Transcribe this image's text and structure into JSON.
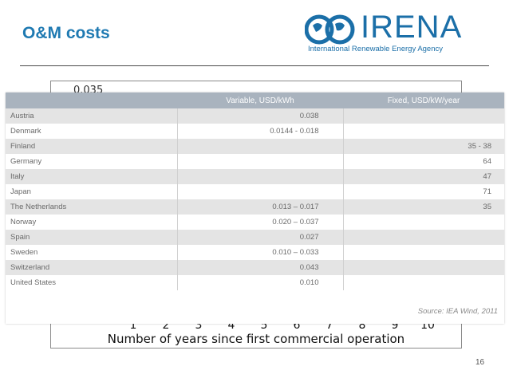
{
  "slide": {
    "title": "O&M costs",
    "page_number": "16"
  },
  "logo": {
    "wordmark": "IRENA",
    "tagline": "International Renewable Energy Agency",
    "color": "#1b6fa8"
  },
  "chart": {
    "visible_y_tick": "0.035",
    "x_ticks": [
      "1",
      "2",
      "3",
      "4",
      "5",
      "6",
      "7",
      "8",
      "9",
      "10"
    ],
    "x_label": "Number of years since first commercial operation"
  },
  "table": {
    "headers": [
      "",
      "Variable, USD/kWh",
      "Fixed, USD/kW/year"
    ],
    "rows": [
      {
        "country": "Austria",
        "variable": "0.038",
        "fixed": ""
      },
      {
        "country": "Denmark",
        "variable": "0.0144 - 0.018",
        "fixed": ""
      },
      {
        "country": "Finland",
        "variable": "",
        "fixed": "35 - 38"
      },
      {
        "country": "Germany",
        "variable": "",
        "fixed": "64"
      },
      {
        "country": "Italy",
        "variable": "",
        "fixed": "47"
      },
      {
        "country": "Japan",
        "variable": "",
        "fixed": "71"
      },
      {
        "country": "The Netherlands",
        "variable": "0.013 – 0.017",
        "fixed": "35"
      },
      {
        "country": "Norway",
        "variable": "0.020 – 0.037",
        "fixed": ""
      },
      {
        "country": "Spain",
        "variable": "0.027",
        "fixed": ""
      },
      {
        "country": "Sweden",
        "variable": "0.010 – 0.033",
        "fixed": ""
      },
      {
        "country": "Switzerland",
        "variable": "0.043",
        "fixed": ""
      },
      {
        "country": "United States",
        "variable": "0.010",
        "fixed": ""
      }
    ],
    "source": "Source: IEA Wind, 2011",
    "header_color": "#a9b3be",
    "alt_row_color": "#e4e4e4"
  }
}
